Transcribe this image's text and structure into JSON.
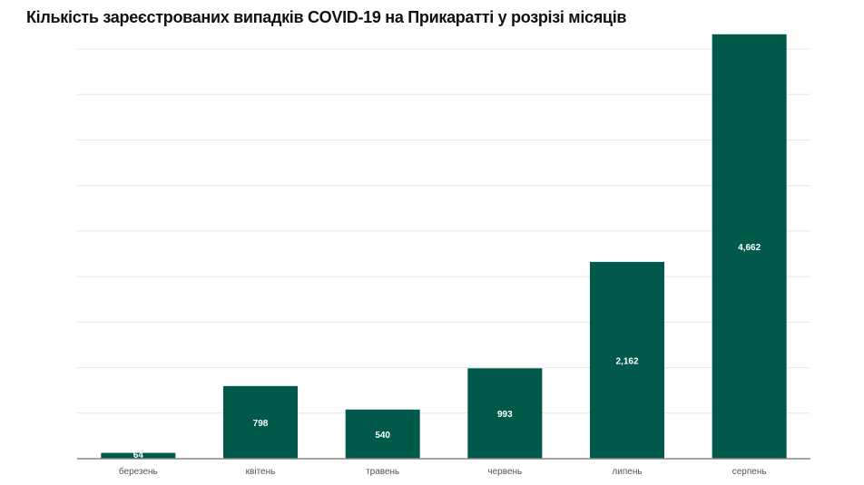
{
  "chart_data": {
    "type": "bar",
    "title": "Кількість зареєстрованих випадків COVID-19 на Прикаратті у розрізі місяців",
    "categories": [
      "березень",
      "квітень",
      "травень",
      "червень",
      "липень",
      "серпень"
    ],
    "values": [
      64,
      798,
      540,
      993,
      2162,
      4662
    ],
    "data_labels": [
      "64",
      "798",
      "540",
      "993",
      "2,162",
      "4,662"
    ],
    "xlabel": "",
    "ylabel": "",
    "ylim": [
      0,
      4700
    ],
    "grid": true,
    "grid_step": 500,
    "y_tick_labels_shown": false,
    "bar_color": "#00594a",
    "label_color": "#ffffff"
  }
}
